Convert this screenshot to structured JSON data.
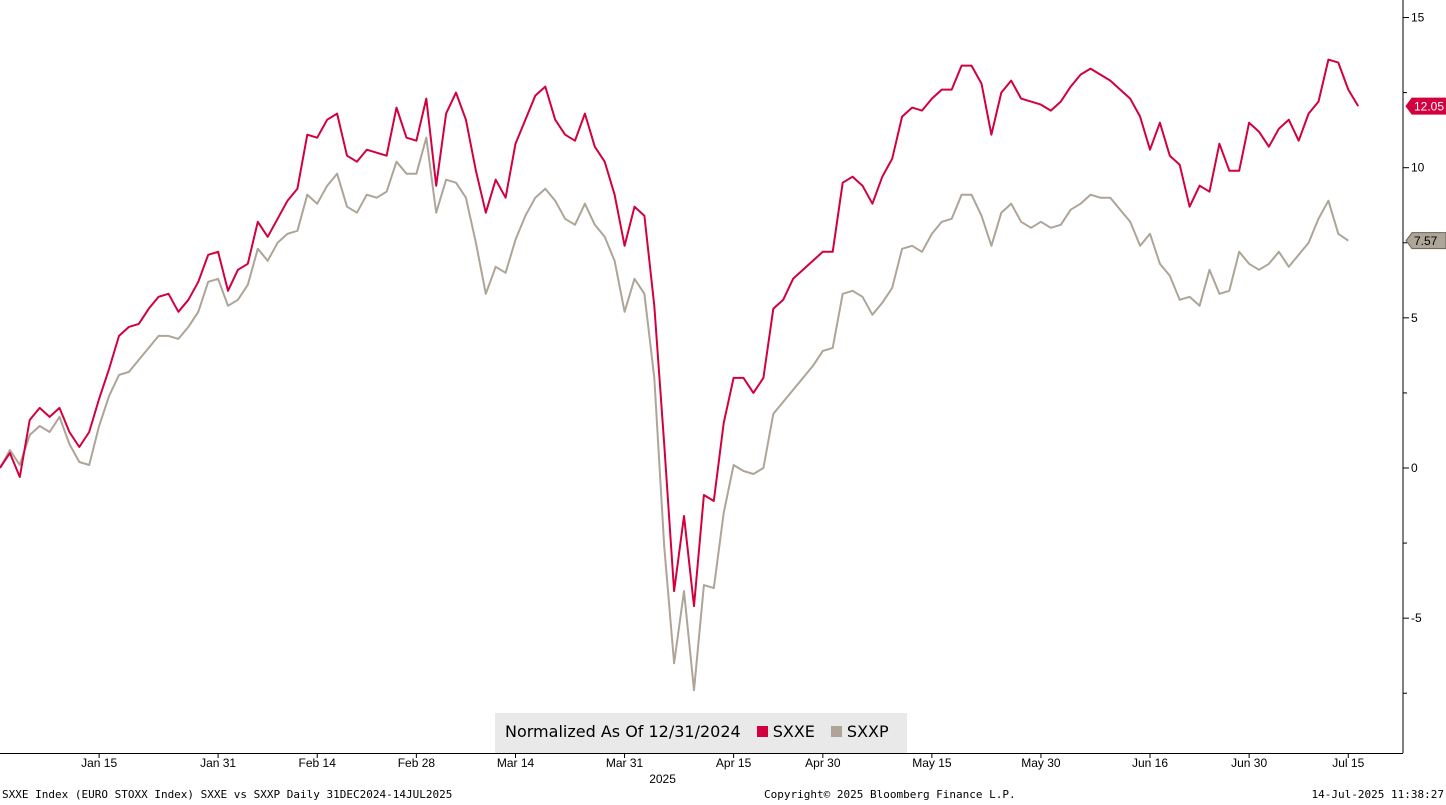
{
  "chart_data": {
    "type": "line",
    "title": "",
    "xlabel": "2025",
    "ylabel": "",
    "ylim": [
      -9.5,
      15.5
    ],
    "yticks": [
      15,
      10,
      5,
      0,
      -5
    ],
    "yminor": [
      12.5,
      7.5,
      2.5,
      -2.5,
      -7.5
    ],
    "xlim": [
      0,
      139
    ],
    "xticks": [
      {
        "label": "Jan 15",
        "x": 10
      },
      {
        "label": "Jan 31",
        "x": 22
      },
      {
        "label": "Feb 14",
        "x": 32
      },
      {
        "label": "Feb 28",
        "x": 42
      },
      {
        "label": "Mar 14",
        "x": 52
      },
      {
        "label": "Mar 31",
        "x": 63
      },
      {
        "label": "Apr 15",
        "x": 74
      },
      {
        "label": "Apr 30",
        "x": 83
      },
      {
        "label": "May 15",
        "x": 94
      },
      {
        "label": "May 30",
        "x": 105
      },
      {
        "label": "Jun 16",
        "x": 116
      },
      {
        "label": "Jun 30",
        "x": 126
      },
      {
        "label": "Jul 15",
        "x": 136
      }
    ],
    "legend_title": "Normalized As Of 12/31/2024",
    "legend_position": "bottom-center",
    "series": [
      {
        "name": "SXXE",
        "color": "#d3003f",
        "last_label": "12.05",
        "values": [
          0.0,
          0.5,
          -0.3,
          1.6,
          2.0,
          1.7,
          2.0,
          1.2,
          0.7,
          1.2,
          2.3,
          3.3,
          4.4,
          4.7,
          4.8,
          5.3,
          5.7,
          5.8,
          5.2,
          5.6,
          6.2,
          7.1,
          7.2,
          5.9,
          6.6,
          6.8,
          8.2,
          7.7,
          8.3,
          8.9,
          9.3,
          11.1,
          11.0,
          11.6,
          11.8,
          10.4,
          10.2,
          10.6,
          10.5,
          10.4,
          12.0,
          11.0,
          10.9,
          12.3,
          9.4,
          11.8,
          12.5,
          11.6,
          9.9,
          8.5,
          9.6,
          9.0,
          10.8,
          11.6,
          12.4,
          12.7,
          11.6,
          11.1,
          10.9,
          11.8,
          10.7,
          10.2,
          9.1,
          7.4,
          8.7,
          8.4,
          5.4,
          0.8,
          -4.1,
          -1.6,
          -4.6,
          -0.9,
          -1.1,
          1.5,
          3.0,
          3.0,
          2.5,
          3.0,
          5.3,
          5.6,
          6.3,
          6.6,
          6.9,
          7.2,
          7.2,
          9.5,
          9.7,
          9.4,
          8.8,
          9.7,
          10.3,
          11.7,
          12.0,
          11.9,
          12.3,
          12.6,
          12.6,
          13.4,
          13.4,
          12.8,
          11.1,
          12.5,
          12.9,
          12.3,
          12.2,
          12.1,
          11.9,
          12.2,
          12.7,
          13.1,
          13.3,
          13.1,
          12.9,
          12.6,
          12.3,
          11.7,
          10.6,
          11.5,
          10.4,
          10.1,
          8.7,
          9.4,
          9.2,
          10.8,
          9.9,
          9.9,
          11.5,
          11.2,
          10.7,
          11.3,
          11.6,
          10.9,
          11.8,
          12.2,
          13.6,
          13.5,
          12.6,
          12.05
        ]
      },
      {
        "name": "SXXP",
        "color": "#aea497",
        "last_label": "7.57",
        "values": [
          0.0,
          0.6,
          0.1,
          1.1,
          1.4,
          1.2,
          1.7,
          0.8,
          0.2,
          0.1,
          1.4,
          2.4,
          3.1,
          3.2,
          3.6,
          4.0,
          4.4,
          4.4,
          4.3,
          4.7,
          5.2,
          6.2,
          6.3,
          5.4,
          5.6,
          6.1,
          7.3,
          6.9,
          7.5,
          7.8,
          7.9,
          9.1,
          8.8,
          9.4,
          9.8,
          8.7,
          8.5,
          9.1,
          9.0,
          9.2,
          10.2,
          9.8,
          9.8,
          11.0,
          8.5,
          9.6,
          9.5,
          9.0,
          7.5,
          5.8,
          6.7,
          6.5,
          7.6,
          8.4,
          9.0,
          9.3,
          8.9,
          8.3,
          8.1,
          8.8,
          8.1,
          7.7,
          6.9,
          5.2,
          6.3,
          5.8,
          3.0,
          -2.6,
          -6.5,
          -4.1,
          -7.4,
          -3.9,
          -4.0,
          -1.5,
          0.1,
          -0.1,
          -0.2,
          0.0,
          1.8,
          2.2,
          2.6,
          3.0,
          3.4,
          3.9,
          4.0,
          5.8,
          5.9,
          5.7,
          5.1,
          5.5,
          6.0,
          7.3,
          7.4,
          7.2,
          7.8,
          8.2,
          8.3,
          9.1,
          9.1,
          8.4,
          7.4,
          8.5,
          8.8,
          8.2,
          8.0,
          8.2,
          8.0,
          8.1,
          8.6,
          8.8,
          9.1,
          9.0,
          9.0,
          8.6,
          8.2,
          7.4,
          7.8,
          6.8,
          6.4,
          5.6,
          5.7,
          5.4,
          6.6,
          5.8,
          5.9,
          7.2,
          6.8,
          6.6,
          6.8,
          7.2,
          6.7,
          7.1,
          7.5,
          8.3,
          8.9,
          7.8,
          7.57
        ]
      }
    ]
  },
  "footer": {
    "left": "SXXE Index (EURO STOXX Index) SXXE vs SXXP  Daily 31DEC2024-14JUL2025",
    "center": "Copyright© 2025 Bloomberg Finance L.P.",
    "right": "14-Jul-2025 11:38:27"
  }
}
